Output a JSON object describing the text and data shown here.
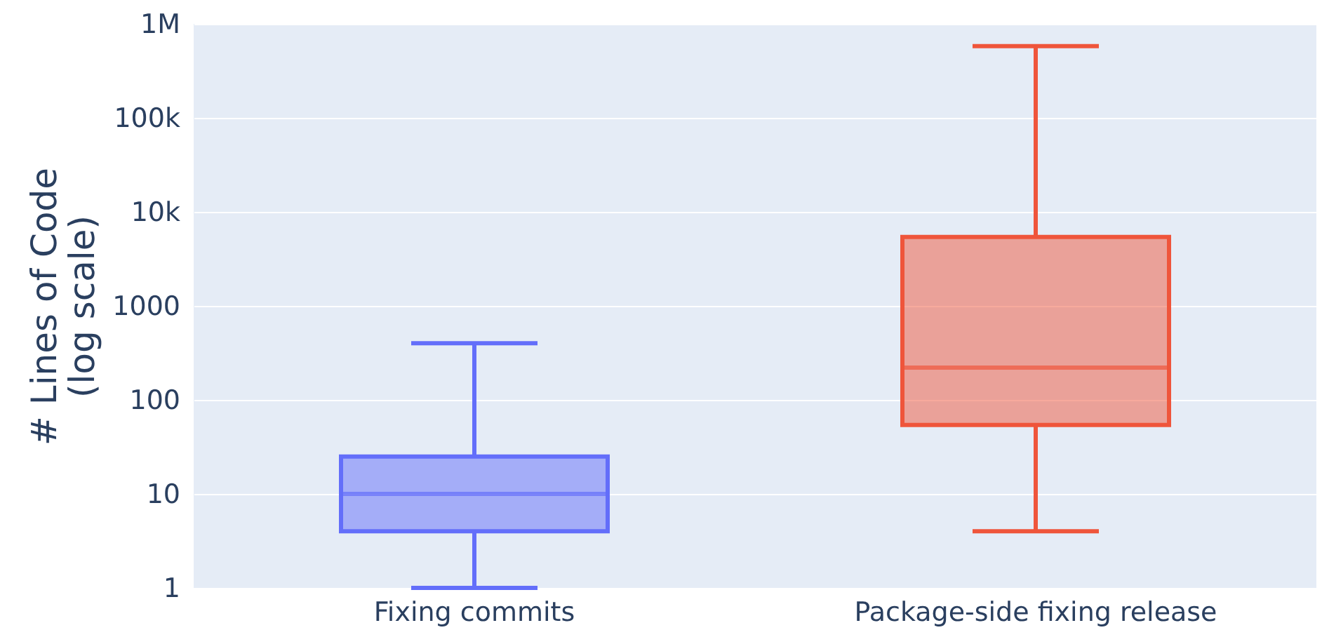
{
  "chart_data": {
    "type": "box",
    "ylabel": "# Lines of Code\n(log scale)",
    "categories": [
      "Fixing commits",
      "Package-side fixing release"
    ],
    "series": [
      {
        "color": "#636efa",
        "boxes": [
          {
            "low": 1,
            "q1": 4,
            "median": 10,
            "q3": 25,
            "high": 400
          },
          null
        ]
      },
      {
        "color": "#ef553b",
        "boxes": [
          null,
          {
            "low": 4,
            "q1": 54,
            "median": 220,
            "q3": 5400,
            "high": 580000
          }
        ]
      }
    ],
    "log": true,
    "ylim": [
      1,
      1000000
    ],
    "yticks": [
      1,
      10,
      100,
      1000,
      {
        "value": 10000,
        "label": "10k"
      },
      {
        "value": 100000,
        "label": "100k"
      },
      {
        "value": 1000000,
        "label": "1M"
      }
    ],
    "grid": "y"
  }
}
